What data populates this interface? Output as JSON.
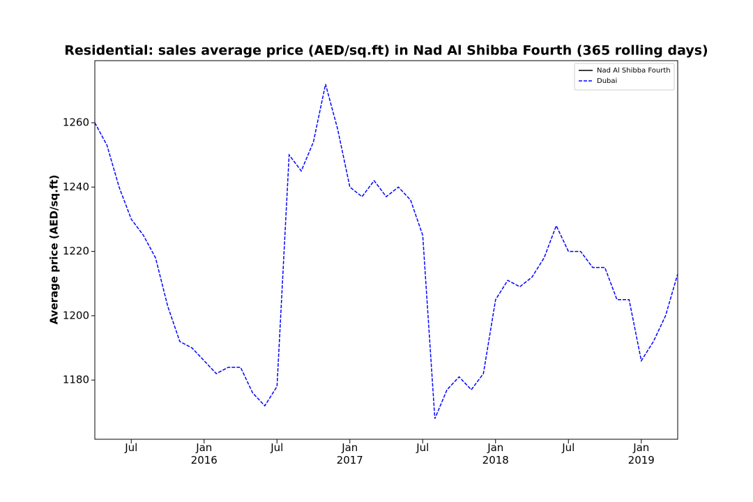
{
  "chart_data": {
    "type": "line",
    "title": "Residential: sales average price (AED/sq.ft) in Nad Al Shibba Fourth (365 rolling days)",
    "y_label": "Average price (AED/sq.ft)",
    "x": [
      "2015-04",
      "2015-05",
      "2015-06",
      "2015-07",
      "2015-08",
      "2015-09",
      "2015-10",
      "2015-11",
      "2015-12",
      "2016-01",
      "2016-02",
      "2016-03",
      "2016-04",
      "2016-05",
      "2016-06",
      "2016-07",
      "2016-08",
      "2016-09",
      "2016-10",
      "2016-11",
      "2016-12",
      "2017-01",
      "2017-02",
      "2017-03",
      "2017-04",
      "2017-05",
      "2017-06",
      "2017-07",
      "2017-08",
      "2017-09",
      "2017-10",
      "2017-11",
      "2017-12",
      "2018-01",
      "2018-02",
      "2018-03",
      "2018-04",
      "2018-05",
      "2018-06",
      "2018-07",
      "2018-08",
      "2018-09",
      "2018-10",
      "2018-11",
      "2018-12",
      "2019-01",
      "2019-02",
      "2019-03",
      "2019-04"
    ],
    "series": [
      {
        "name": "Nad Al Shibba Fourth",
        "color": "#000000",
        "dash": false,
        "values": [
          null,
          null,
          null,
          null,
          null,
          null,
          null,
          null,
          null,
          null,
          null,
          null,
          null,
          null,
          null,
          null,
          null,
          null,
          null,
          null,
          null,
          null,
          null,
          null,
          null,
          null,
          null,
          null,
          null,
          null,
          null,
          null,
          null,
          null,
          null,
          null,
          null,
          null,
          null,
          null,
          null,
          null,
          null,
          null,
          null,
          null,
          null,
          null,
          null
        ]
      },
      {
        "name": "Dubai",
        "color": "#0000ff",
        "dash": true,
        "values": [
          1260,
          1253,
          1240,
          1230,
          1225,
          1218,
          1203,
          1192,
          1190,
          1186,
          1182,
          1184,
          1184,
          1176,
          1172,
          1178,
          1250,
          1245,
          1254,
          1272,
          1258,
          1240,
          1237,
          1242,
          1237,
          1240,
          1236,
          1225,
          1168,
          1177,
          1181,
          1177,
          1182,
          1205,
          1211,
          1209,
          1212,
          1218,
          1228,
          1220,
          1220,
          1215,
          1215,
          1205,
          1205,
          1186,
          1192,
          1200,
          1213
        ]
      }
    ],
    "xlim": [
      "2015-04",
      "2019-04"
    ],
    "xticks": [
      {
        "value": "2015-07",
        "label": "Jul"
      },
      {
        "value": "2016-01",
        "label": "Jan\n2016"
      },
      {
        "value": "2016-07",
        "label": "Jul"
      },
      {
        "value": "2017-01",
        "label": "Jan\n2017"
      },
      {
        "value": "2017-07",
        "label": "Jul"
      },
      {
        "value": "2018-01",
        "label": "Jan\n2018"
      },
      {
        "value": "2018-07",
        "label": "Jul"
      },
      {
        "value": "2019-01",
        "label": "Jan\n2019"
      }
    ],
    "ylim": [
      1161.6,
      1279.3
    ],
    "yticks": [
      1180,
      1200,
      1220,
      1240,
      1260
    ],
    "grid": false,
    "legend": "upper right"
  }
}
